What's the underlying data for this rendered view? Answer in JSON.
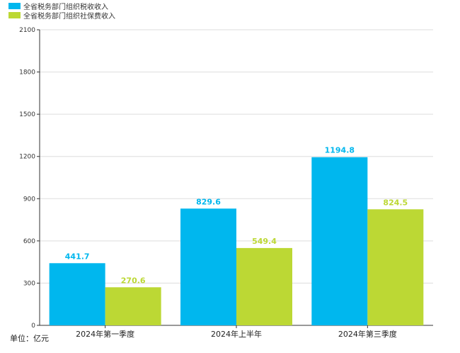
{
  "chart_data": {
    "type": "bar",
    "categories": [
      "2024年第一季度",
      "2024年上半年",
      "2024年第三季度"
    ],
    "series": [
      {
        "name": "全省税务部门组织税收收入",
        "values": [
          441.7,
          829.6,
          1194.8
        ],
        "color": "#00b7ee"
      },
      {
        "name": "全省税务部门组织社保费收入",
        "values": [
          270.6,
          549.4,
          824.5
        ],
        "color": "#bcd834"
      }
    ],
    "ylim": [
      0,
      2100
    ],
    "yticks": [
      0,
      300,
      600,
      900,
      1200,
      1500,
      1800,
      2100
    ],
    "grid": true,
    "legend_position": "top-left",
    "unit_label": "单位：亿元"
  }
}
